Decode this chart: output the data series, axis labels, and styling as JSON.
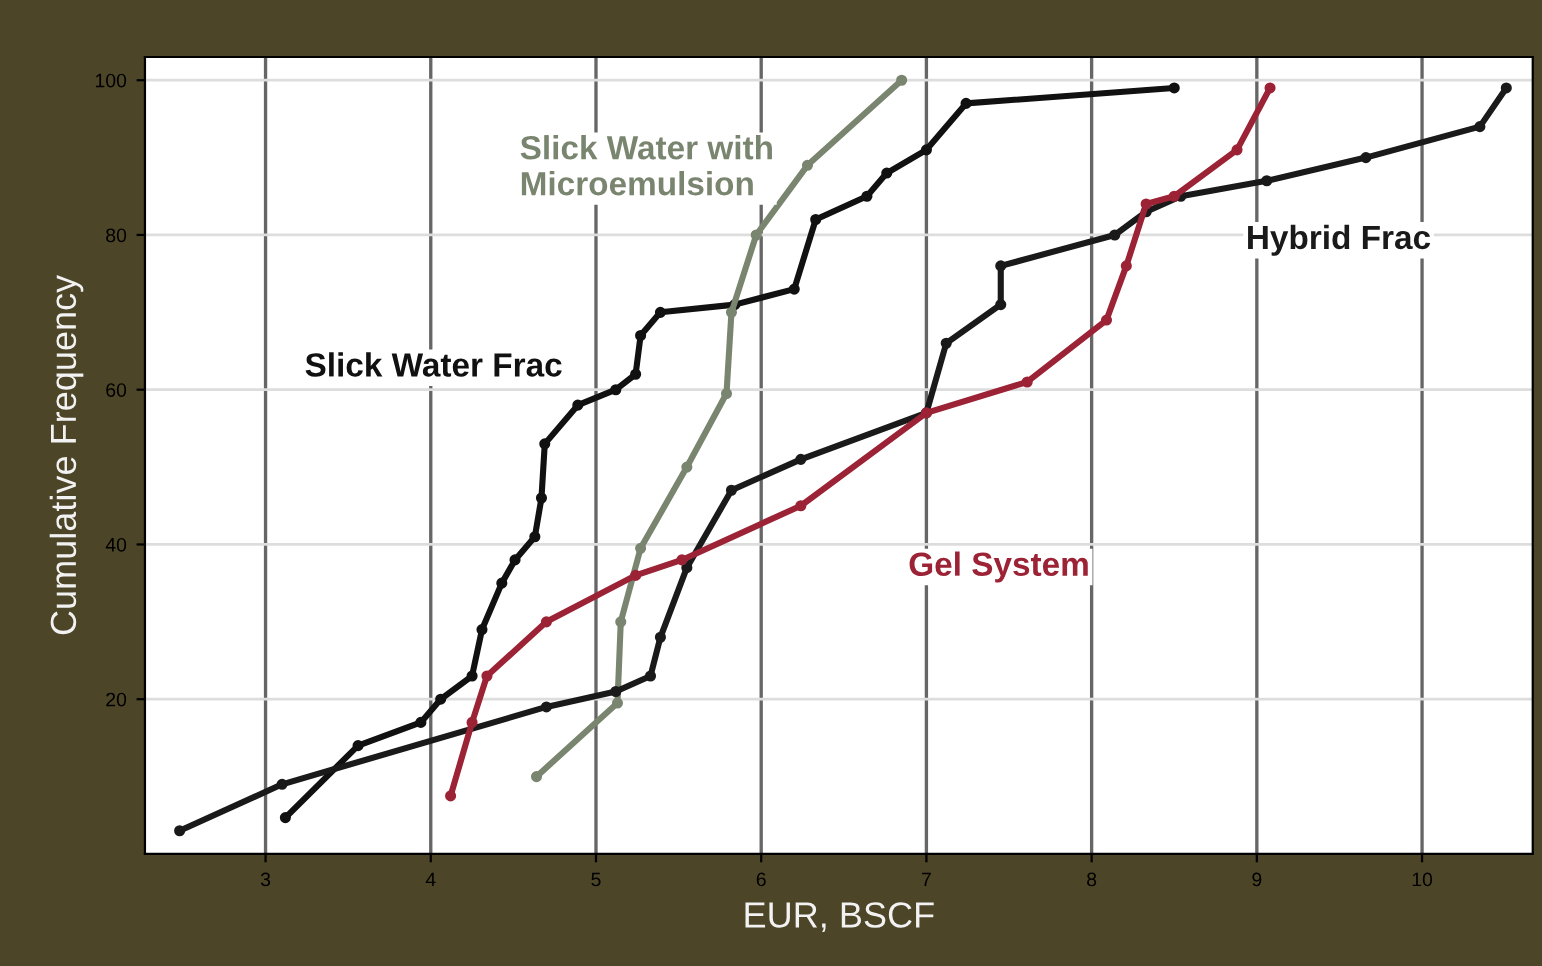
{
  "chart_data": {
    "type": "line",
    "xlabel": "EUR, BSCF",
    "ylabel": "Cumulative Frequency",
    "xlim": [
      2.27,
      10.67
    ],
    "ylim": [
      0,
      103
    ],
    "xticks": [
      3,
      4,
      5,
      6,
      7,
      8,
      9,
      10
    ],
    "yticks": [
      20,
      40,
      60,
      80,
      100
    ],
    "grid": true,
    "legend": false,
    "marker": "circle",
    "line_style": "solid",
    "series": [
      {
        "name": "Slick Water Frac",
        "color": "#111111",
        "x": [
          3.12,
          3.56,
          3.94,
          4.06,
          4.25,
          4.31,
          4.43,
          4.51,
          4.63,
          4.67,
          4.69,
          4.89,
          5.12,
          5.24,
          5.27,
          5.39,
          5.84,
          6.2,
          6.33,
          6.64,
          6.76,
          7.0,
          7.24,
          8.5
        ],
        "values": [
          4.7,
          14,
          17,
          20,
          23,
          29,
          35,
          38,
          41,
          46,
          53,
          58,
          60,
          62,
          67,
          70,
          71,
          73,
          82,
          85,
          88,
          91,
          97,
          99
        ]
      },
      {
        "name": "Slick Water with Microemulsion",
        "color": "#7a8570",
        "x": [
          4.64,
          5.13,
          5.15,
          5.27,
          5.55,
          5.79,
          5.82,
          5.97,
          6.28,
          6.85
        ],
        "values": [
          10,
          19.5,
          30,
          39.5,
          50,
          59.5,
          70,
          80,
          89,
          100
        ]
      },
      {
        "name": "Hybrid Frac",
        "color": "#1a1a1a",
        "x": [
          2.48,
          3.1,
          4.7,
          5.12,
          5.33,
          5.39,
          5.55,
          5.82,
          6.24,
          7.0,
          7.12,
          7.45,
          7.45,
          8.14,
          8.33,
          8.54,
          9.06,
          9.66,
          10.35,
          10.51
        ],
        "values": [
          3,
          9,
          19,
          21,
          23,
          28,
          37,
          47,
          51,
          57,
          66,
          71,
          76,
          80,
          83,
          85,
          87,
          90,
          94,
          99
        ]
      },
      {
        "name": "Gel System",
        "color": "#9b2335",
        "x": [
          4.12,
          4.25,
          4.34,
          4.7,
          5.24,
          5.52,
          6.24,
          7.0,
          7.61,
          8.09,
          8.21,
          8.33,
          8.5,
          8.88,
          9.08
        ],
        "values": [
          7.5,
          17,
          23,
          30,
          36,
          38,
          45,
          57,
          61,
          69,
          76,
          84,
          85,
          91,
          99
        ]
      }
    ]
  }
}
